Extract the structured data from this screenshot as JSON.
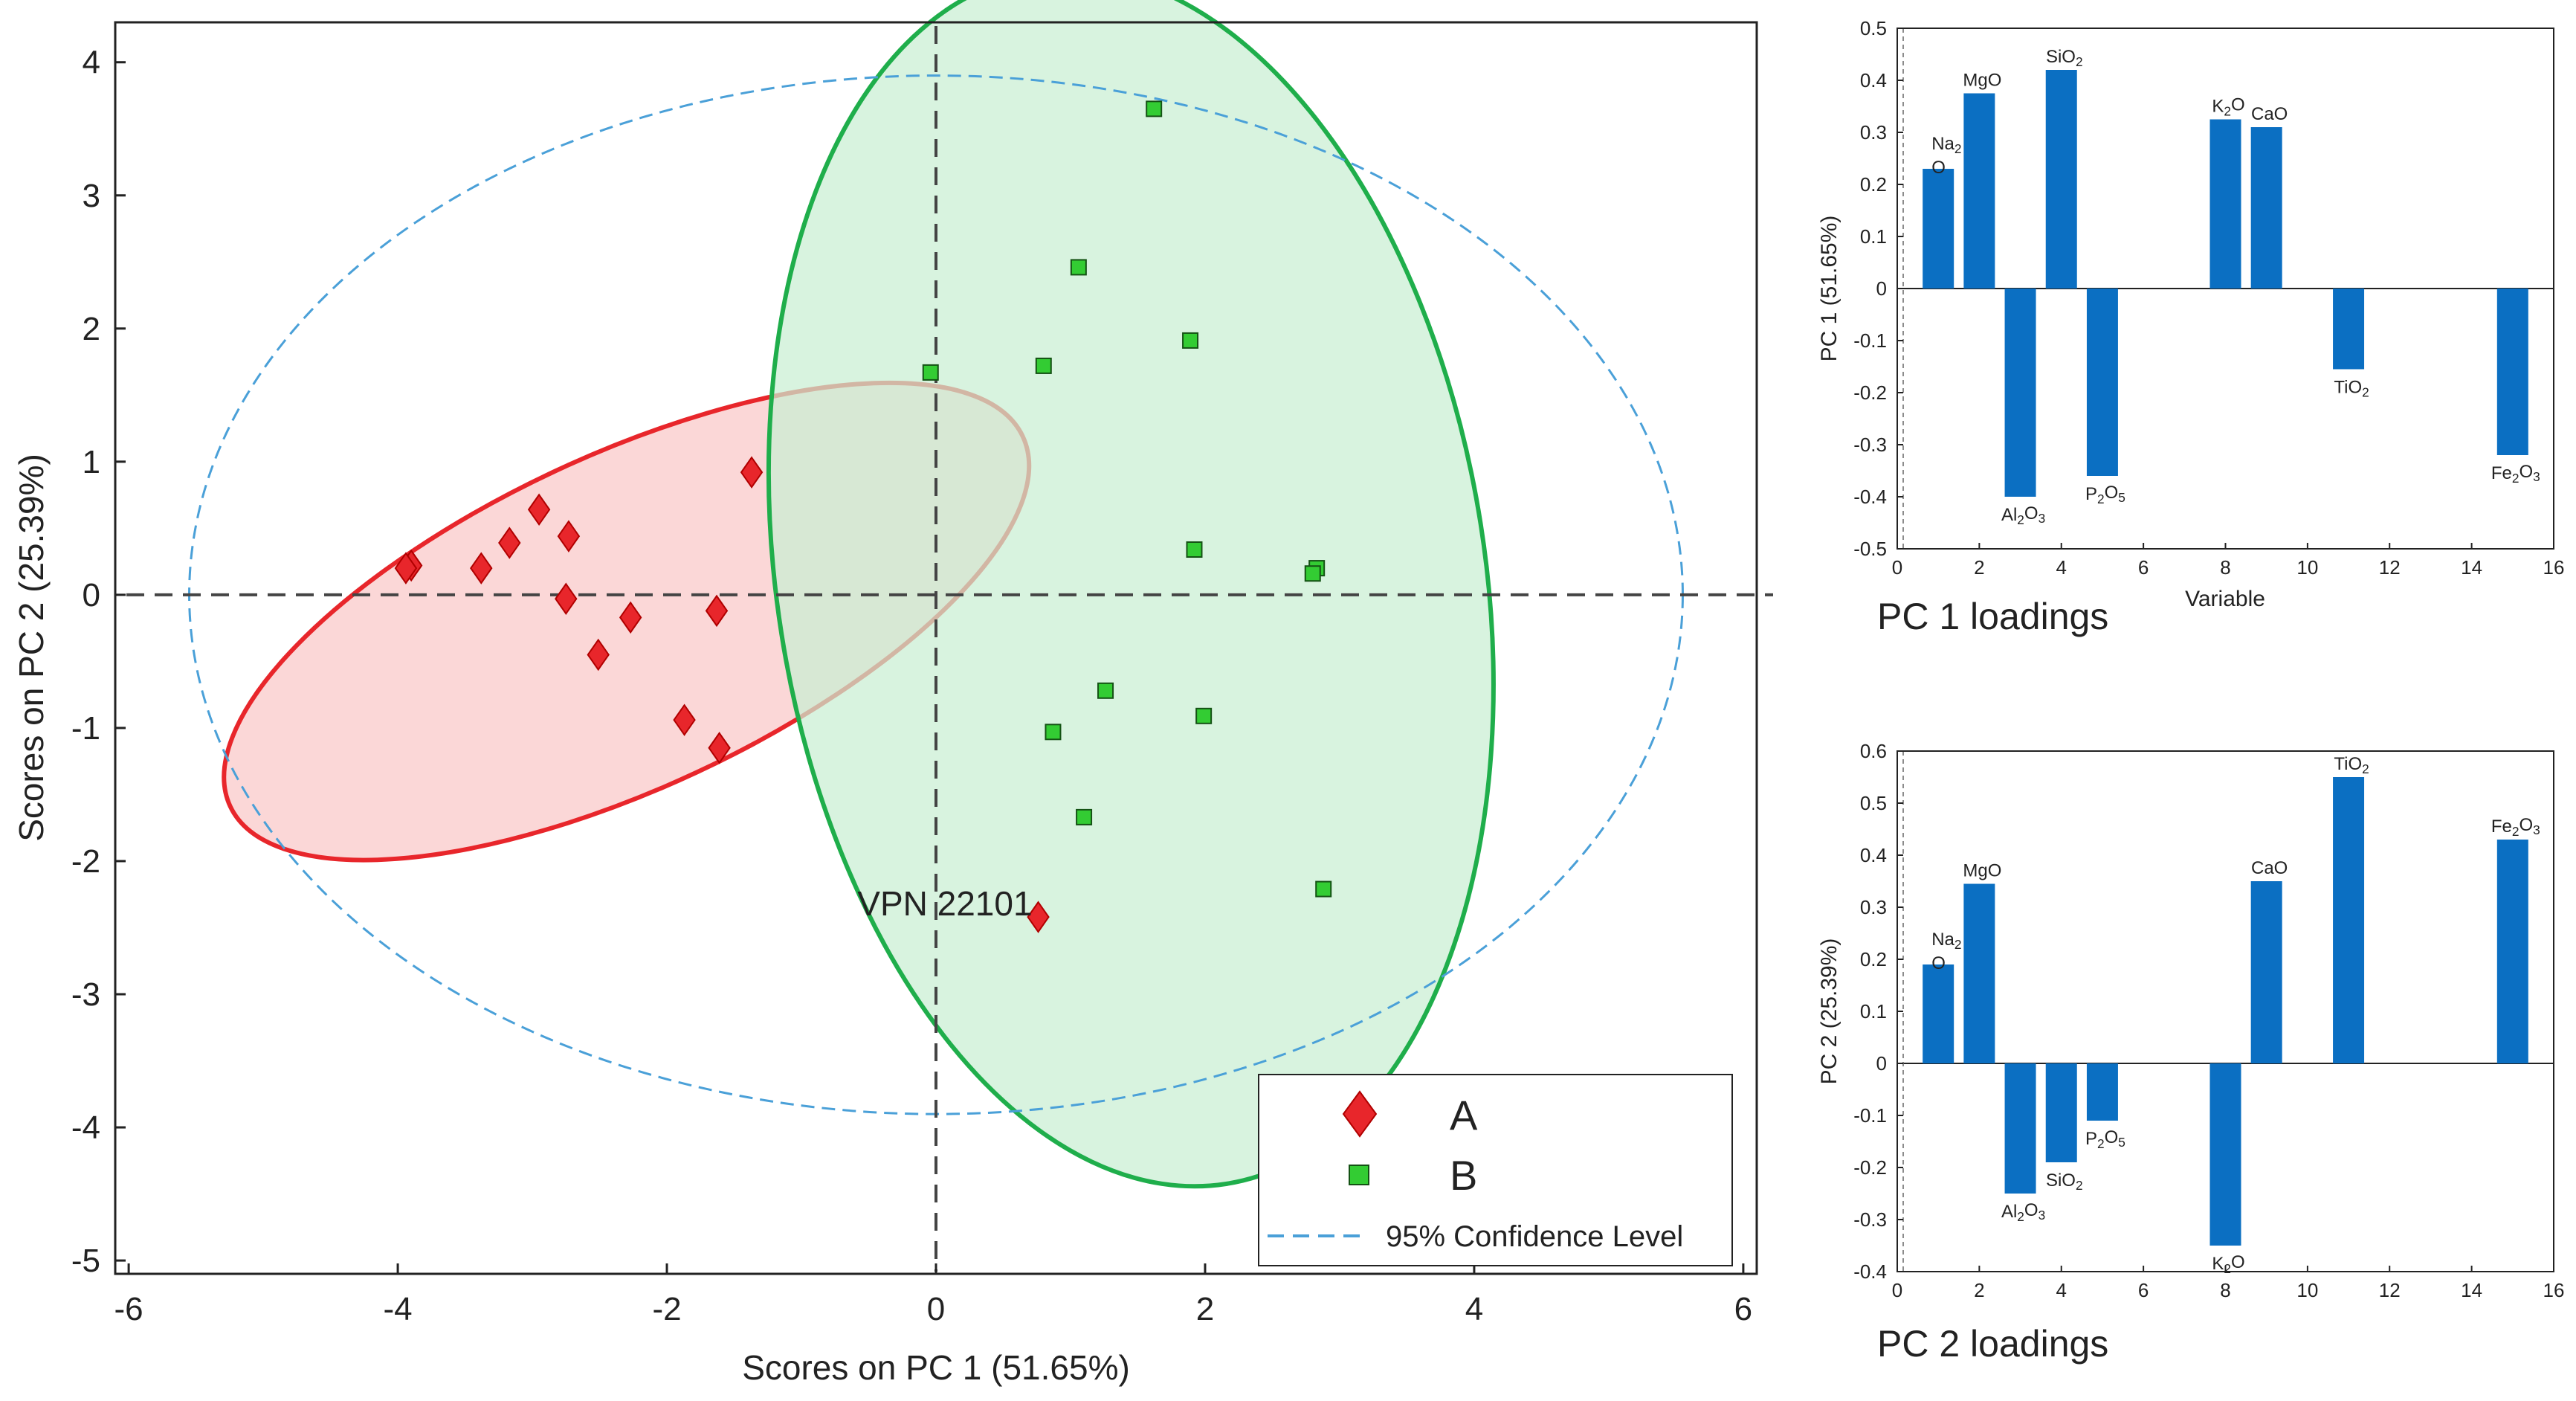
{
  "chart_data": [
    {
      "type": "scatter",
      "xlabel": "Scores on PC 1 (51.65%)",
      "ylabel": "Scores on PC 2 (25.39%)",
      "xlim": [
        -6.1,
        6.1
      ],
      "ylim": [
        -5.1,
        4.3
      ],
      "xticks": [
        -6,
        -4,
        -2,
        0,
        2,
        4,
        6
      ],
      "yticks": [
        -5,
        -4,
        -3,
        -2,
        -1,
        0,
        1,
        2,
        3,
        4
      ],
      "series": [
        {
          "name": "A",
          "marker": "diamond",
          "color": "#e8262b",
          "points": [
            {
              "x": -3.9,
              "y": 0.22
            },
            {
              "x": -3.94,
              "y": 0.2
            },
            {
              "x": -3.38,
              "y": 0.2
            },
            {
              "x": -3.17,
              "y": 0.39
            },
            {
              "x": -2.95,
              "y": 0.64
            },
            {
              "x": -2.73,
              "y": 0.44
            },
            {
              "x": -2.75,
              "y": -0.03
            },
            {
              "x": -2.27,
              "y": -0.17
            },
            {
              "x": -2.51,
              "y": -0.45
            },
            {
              "x": -1.87,
              "y": -0.94
            },
            {
              "x": -1.63,
              "y": -0.12
            },
            {
              "x": -1.61,
              "y": -1.15
            },
            {
              "x": -1.37,
              "y": 0.92
            },
            {
              "x": 0.76,
              "y": -2.42
            }
          ]
        },
        {
          "name": "B",
          "marker": "square",
          "color": "#33cc33",
          "points": [
            {
              "x": 1.62,
              "y": 3.65
            },
            {
              "x": 1.06,
              "y": 2.46
            },
            {
              "x": 1.89,
              "y": 1.91
            },
            {
              "x": 0.8,
              "y": 1.72
            },
            {
              "x": -0.04,
              "y": 1.67
            },
            {
              "x": 1.92,
              "y": 0.34
            },
            {
              "x": 2.83,
              "y": 0.2
            },
            {
              "x": 2.8,
              "y": 0.16
            },
            {
              "x": 1.26,
              "y": -0.72
            },
            {
              "x": 1.99,
              "y": -0.91
            },
            {
              "x": 0.87,
              "y": -1.03
            },
            {
              "x": 1.1,
              "y": -1.67
            },
            {
              "x": 2.88,
              "y": -2.21
            }
          ]
        }
      ],
      "ellipses": [
        {
          "name": "A region",
          "cx": -2.3,
          "cy": -0.2,
          "rx": 3.25,
          "ry": 1.25,
          "angle_deg": -25,
          "stroke": "#e8262b",
          "fill": "#f9c8c8"
        },
        {
          "name": "B region",
          "cx": 1.45,
          "cy": 0.12,
          "rx": 2.63,
          "ry": 4.6,
          "angle_deg": -9,
          "stroke": "#1fae4b",
          "fill": "#c9efd3"
        },
        {
          "name": "95% Confidence Level",
          "cx": 0.0,
          "cy": 0.0,
          "rx": 5.55,
          "ry": 3.9,
          "angle_deg": 0,
          "stroke": "#4aa0d8",
          "dashed": true
        }
      ],
      "annotations": [
        {
          "text": "VPN 22101",
          "x": 0.76,
          "y": -2.42
        }
      ],
      "legend": {
        "position": "bottom-right",
        "entries": [
          {
            "label": "A",
            "marker": "diamond",
            "color": "#e8262b"
          },
          {
            "label": "B",
            "marker": "square",
            "color": "#33cc33"
          },
          {
            "label": "95% Confidence Level",
            "marker": "dashed-line",
            "color": "#4aa0d8"
          }
        ]
      }
    },
    {
      "type": "bar",
      "caption": "PC 1 loadings",
      "xlabel": "Variable",
      "ylabel": "PC 1 (51.65%)",
      "xlim": [
        0,
        16
      ],
      "ylim": [
        -0.5,
        0.5
      ],
      "xticks": [
        0,
        2,
        4,
        6,
        8,
        10,
        12,
        14,
        16
      ],
      "ytick_labels": [
        "0.5",
        "0.4",
        "0.3",
        "0.2",
        "0.1",
        "0",
        "-0.1",
        "-0.2",
        "-0.3",
        "-0.4",
        "-0.5"
      ],
      "bar_color": "#0b6fc2",
      "bars": [
        {
          "x": 1,
          "value": 0.23,
          "label_lines": [
            "Na2",
            "O"
          ]
        },
        {
          "x": 2,
          "value": 0.375,
          "label": "MgO"
        },
        {
          "x": 3,
          "value": -0.4,
          "label": "Al2O3"
        },
        {
          "x": 4,
          "value": 0.42,
          "label": "SiO2"
        },
        {
          "x": 5,
          "value": -0.36,
          "label": "P2O5"
        },
        {
          "x": 8,
          "value": 0.325,
          "label": "K2O"
        },
        {
          "x": 9,
          "value": 0.31,
          "label": "CaO"
        },
        {
          "x": 11,
          "value": -0.155,
          "label": "TiO2"
        },
        {
          "x": 15,
          "value": -0.32,
          "label": "Fe2O3"
        }
      ]
    },
    {
      "type": "bar",
      "caption": "PC 2 loadings",
      "xlabel": "",
      "ylabel": "PC 2 (25.39%)",
      "xlim": [
        0,
        16
      ],
      "ylim": [
        -0.4,
        0.6
      ],
      "xticks": [
        0,
        2,
        4,
        6,
        8,
        10,
        12,
        14,
        16
      ],
      "ytick_labels": [
        "0.6",
        "0.5",
        "0.4",
        "0.3",
        "0.2",
        "0.1",
        "0",
        "-0.1",
        "-0.2",
        "-0.3",
        "-0.4"
      ],
      "bar_color": "#0b6fc2",
      "bars": [
        {
          "x": 1,
          "value": 0.19,
          "label_lines": [
            "Na2",
            "O"
          ]
        },
        {
          "x": 2,
          "value": 0.345,
          "label": "MgO"
        },
        {
          "x": 3,
          "value": -0.25,
          "label": "Al2O3"
        },
        {
          "x": 4,
          "value": -0.19,
          "label": "SiO2"
        },
        {
          "x": 5,
          "value": -0.11,
          "label": "P2O5"
        },
        {
          "x": 8,
          "value": -0.35,
          "label": "K2O"
        },
        {
          "x": 9,
          "value": 0.35,
          "label": "CaO"
        },
        {
          "x": 11,
          "value": 0.55,
          "label": "TiO2"
        },
        {
          "x": 15,
          "value": 0.43,
          "label": "Fe2O3"
        }
      ]
    }
  ]
}
